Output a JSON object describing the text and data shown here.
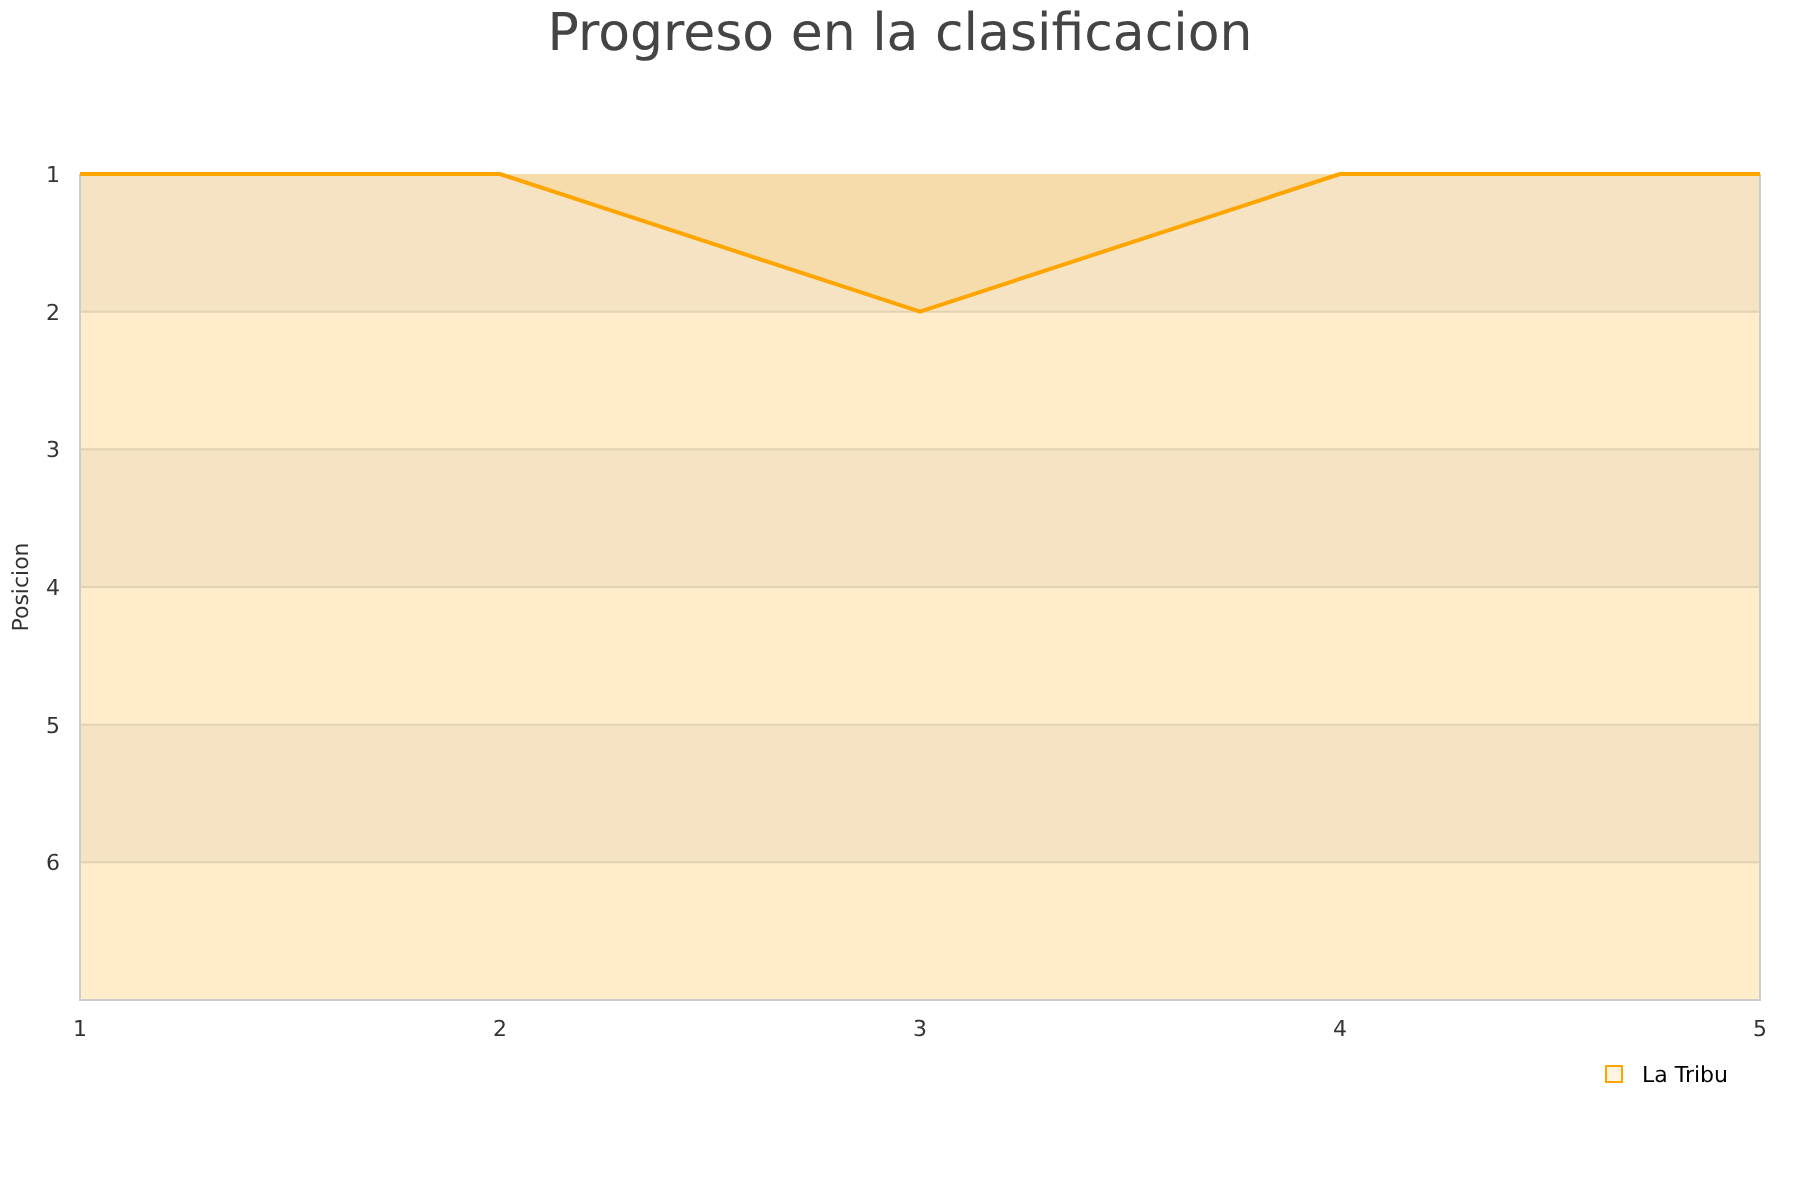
{
  "chart_data": {
    "type": "area",
    "title": "Progreso en la clasificacion",
    "ylabel": "Posicion",
    "x": [
      1,
      2,
      3,
      4,
      5
    ],
    "series": [
      {
        "name": "La Tribu",
        "color": "#ffa500",
        "values": [
          1,
          1,
          2,
          1,
          1
        ]
      }
    ],
    "xlim": [
      1,
      5
    ],
    "xticks": [
      1,
      2,
      3,
      4,
      5
    ],
    "ylim": [
      7,
      1
    ],
    "yticks": [
      1,
      2,
      3,
      4,
      5,
      6
    ],
    "bands": [
      {
        "axis": "y",
        "from": 1,
        "to": 2,
        "color": "#f5e3c3"
      },
      {
        "axis": "y",
        "from": 2,
        "to": 3,
        "color": "#feecca"
      },
      {
        "axis": "y",
        "from": 3,
        "to": 4,
        "color": "#f5e3c3"
      },
      {
        "axis": "y",
        "from": 4,
        "to": 5,
        "color": "#feecca"
      },
      {
        "axis": "y",
        "from": 5,
        "to": 6,
        "color": "#f5e3c3"
      },
      {
        "axis": "y",
        "from": 6,
        "to": 7,
        "color": "#feecca"
      }
    ],
    "grid": "y",
    "legend": "bottom right",
    "marker": "none",
    "line_style": "solid"
  }
}
